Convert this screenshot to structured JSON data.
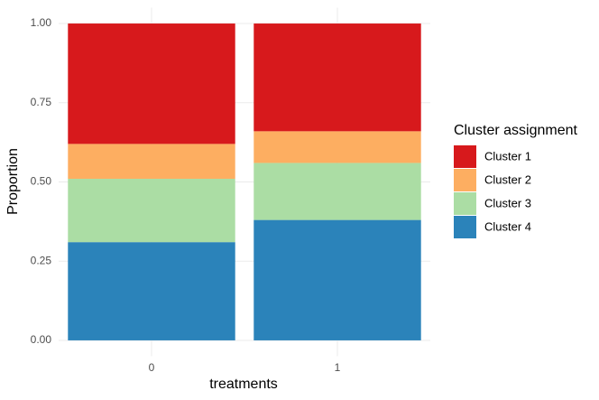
{
  "chart_data": {
    "type": "stacked_bar",
    "x_label": "treatments",
    "y_label": "Proportion",
    "legend_title": "Cluster assignment",
    "legend_position": "right",
    "categories": [
      "0",
      "1"
    ],
    "series": [
      {
        "name": "Cluster 1",
        "color": "#d7191c",
        "values": [
          0.38,
          0.34
        ]
      },
      {
        "name": "Cluster 2",
        "color": "#fdae61",
        "values": [
          0.11,
          0.1
        ]
      },
      {
        "name": "Cluster 3",
        "color": "#abdda4",
        "values": [
          0.2,
          0.18
        ]
      },
      {
        "name": "Cluster 4",
        "color": "#2b83ba",
        "values": [
          0.31,
          0.38
        ]
      }
    ],
    "ylim": [
      -0.05,
      1.05
    ],
    "yticks": [
      {
        "value": 0,
        "label": "0.00"
      },
      {
        "value": 0.25,
        "label": "0.25"
      },
      {
        "value": 0.5,
        "label": "0.50"
      },
      {
        "value": 0.75,
        "label": "0.75"
      },
      {
        "value": 1,
        "label": "1.00"
      }
    ],
    "grid": true
  }
}
